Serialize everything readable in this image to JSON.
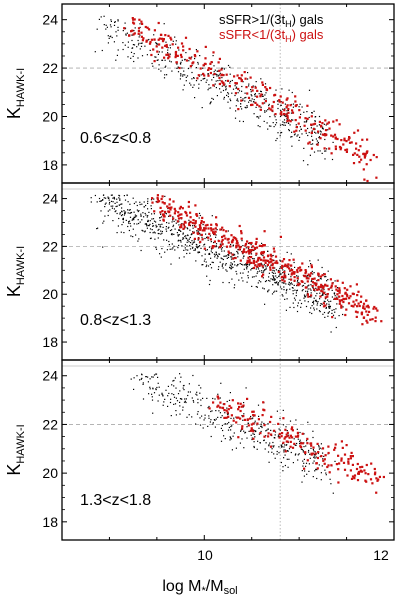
{
  "chart_data": {
    "type": "scatter",
    "x_label": {
      "main": "log M",
      "star": "*",
      "slash": "/M",
      "sub": "sol"
    },
    "x_ticks": [
      "10",
      "12"
    ],
    "xlim": [
      8.5,
      12.0
    ],
    "y_label": {
      "main": "K",
      "sub": "HAWK-I"
    },
    "y_ticks": [
      "24",
      "22",
      "20",
      "18"
    ],
    "ylim": [
      17.5,
      24.4
    ],
    "ref_line_y": 22,
    "ref_line_x": 10.8,
    "colors": {
      "star_forming": "#000000",
      "quiescent": "#cc1111",
      "guide": "#aaaaaa"
    },
    "legend": {
      "position": "top-right",
      "entries": [
        {
          "pre": "sSFR>1/(3t",
          "sub": "H",
          "post": ") gals",
          "color": "#000000"
        },
        {
          "pre": "sSFR<1/(3t",
          "sub": "H",
          "post": ") gals",
          "color": "#cc1111"
        }
      ]
    },
    "panels": [
      {
        "label": "0.6<z<0.8",
        "series": [
          {
            "name": "sSFR>1/(3tH) gals",
            "trend": {
              "x": [
                8.9,
                11.3
              ],
              "y": [
                23.8,
                19.1
              ],
              "scatter": 0.5,
              "n": 520
            }
          },
          {
            "name": "sSFR<1/(3tH) gals",
            "trend": {
              "x": [
                9.2,
                11.8
              ],
              "y": [
                23.8,
                18.2
              ],
              "scatter": 0.35,
              "n": 300
            }
          }
        ]
      },
      {
        "label": "0.8<z<1.3",
        "series": [
          {
            "name": "sSFR>1/(3tH) gals",
            "trend": {
              "x": [
                8.9,
                11.4
              ],
              "y": [
                23.9,
                19.6
              ],
              "scatter": 0.5,
              "n": 900
            }
          },
          {
            "name": "sSFR<1/(3tH) gals",
            "trend": {
              "x": [
                9.5,
                11.8
              ],
              "y": [
                23.7,
                19.2
              ],
              "scatter": 0.35,
              "n": 450
            }
          }
        ]
      },
      {
        "label": "1.3<z<1.8",
        "series": [
          {
            "name": "sSFR>1/(3tH) gals",
            "trend": {
              "x": [
                9.3,
                11.3
              ],
              "y": [
                23.9,
                20.3
              ],
              "scatter": 0.5,
              "n": 420
            }
          },
          {
            "name": "sSFR<1/(3tH) gals",
            "trend": {
              "x": [
                10.1,
                11.8
              ],
              "y": [
                22.9,
                19.8
              ],
              "scatter": 0.35,
              "n": 200
            }
          }
        ]
      }
    ]
  }
}
